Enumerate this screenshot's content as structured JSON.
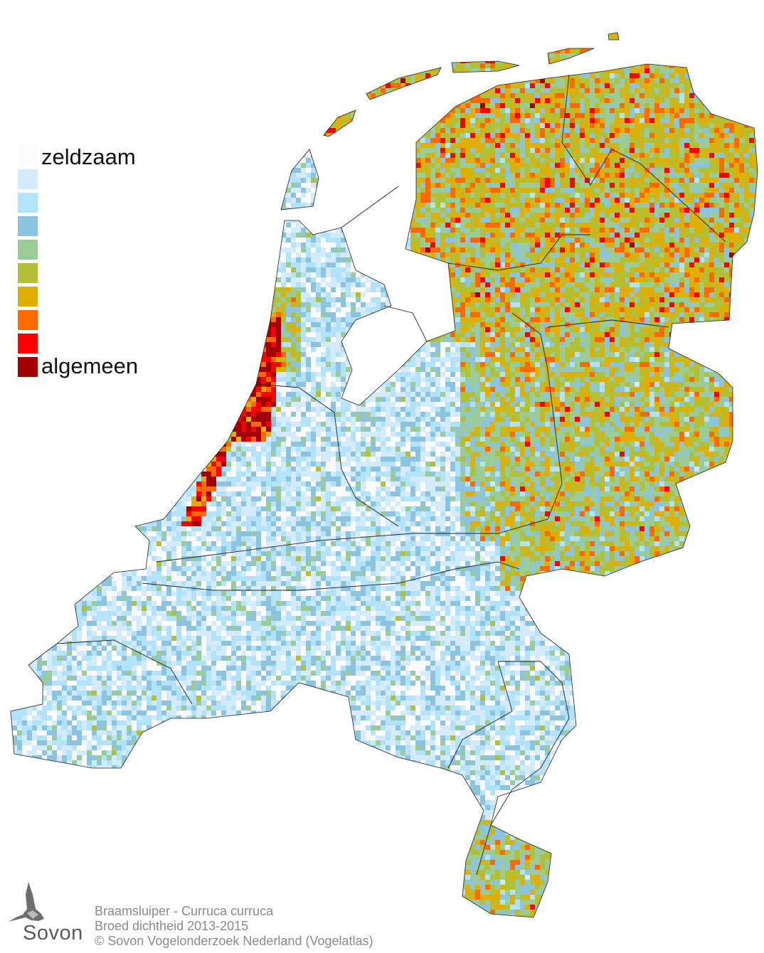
{
  "legend": {
    "classes": [
      {
        "color": "#fbfbff",
        "label": "zeldzaam"
      },
      {
        "color": "#d4ebfb",
        "label": ""
      },
      {
        "color": "#b3e2fb",
        "label": ""
      },
      {
        "color": "#8cc4e0",
        "label": ""
      },
      {
        "color": "#9acb98",
        "label": ""
      },
      {
        "color": "#b3c035",
        "label": ""
      },
      {
        "color": "#e0af05",
        "label": ""
      },
      {
        "color": "#ff6a00",
        "label": ""
      },
      {
        "color": "#ff0000",
        "label": ""
      },
      {
        "color": "#a10000",
        "label": "algemeen"
      }
    ],
    "low_label": "zeldzaam",
    "high_label": "algemeen"
  },
  "caption": {
    "species": "Braamsluiper - Curruca curruca",
    "subtitle": "Broed dichtheid 2013-2015",
    "copyright": "© Sovon Vogelonderzoek Nederland (Vogelatlas)"
  },
  "logo": {
    "text": "Sovon"
  },
  "map": {
    "border_color": "#111111"
  }
}
